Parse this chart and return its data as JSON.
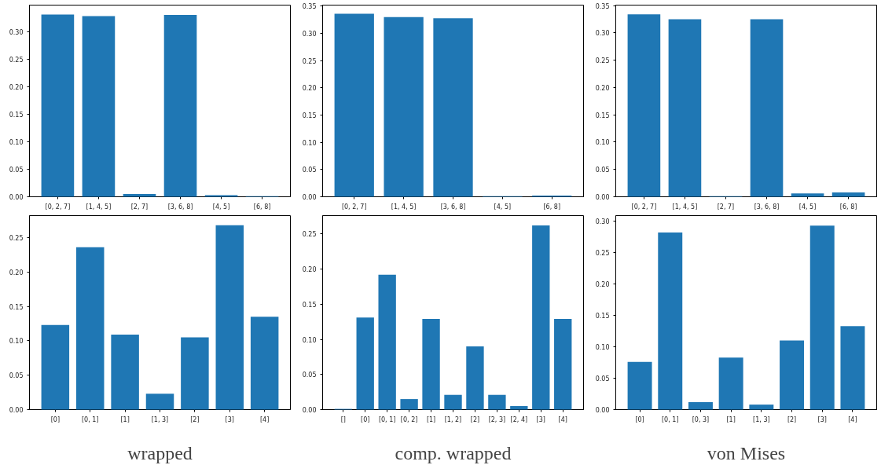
{
  "chart_data": [
    {
      "type": "bar",
      "categories": [
        "[0, 2, 7]",
        "[1, 4, 5]",
        "[2, 7]",
        "[3, 6, 8]",
        "[4, 5]",
        "[6, 8]"
      ],
      "values": [
        0.331,
        0.328,
        0.005,
        0.33,
        0.003,
        0.001
      ],
      "color": "#1f77b4",
      "ylim": [
        0,
        0.348
      ],
      "yticks": [
        {
          "value": 0,
          "label": "0.00"
        },
        {
          "value": 0.05,
          "label": "0.05"
        },
        {
          "value": 0.1,
          "label": "0.10"
        },
        {
          "value": 0.15,
          "label": "0.15"
        },
        {
          "value": 0.2,
          "label": "0.20"
        },
        {
          "value": 0.25,
          "label": "0.25"
        },
        {
          "value": 0.3,
          "label": "0.30"
        }
      ]
    },
    {
      "type": "bar",
      "categories": [
        "[0, 2, 7]",
        "[1, 4, 5]",
        "[3, 6, 8]",
        "[4, 5]",
        "[6, 8]"
      ],
      "values": [
        0.336,
        0.33,
        0.328,
        0.001,
        0.002
      ],
      "color": "#1f77b4",
      "ylim": [
        0,
        0.352
      ],
      "yticks": [
        {
          "value": 0,
          "label": "0.00"
        },
        {
          "value": 0.05,
          "label": "0.05"
        },
        {
          "value": 0.1,
          "label": "0.10"
        },
        {
          "value": 0.15,
          "label": "0.15"
        },
        {
          "value": 0.2,
          "label": "0.20"
        },
        {
          "value": 0.25,
          "label": "0.25"
        },
        {
          "value": 0.3,
          "label": "0.30"
        },
        {
          "value": 0.35,
          "label": "0.35"
        }
      ]
    },
    {
      "type": "bar",
      "categories": [
        "[0, 2, 7]",
        "[1, 4, 5]",
        "[2, 7]",
        "[3, 6, 8]",
        "[4, 5]",
        "[6, 8]"
      ],
      "values": [
        0.334,
        0.325,
        0.001,
        0.325,
        0.006,
        0.008
      ],
      "color": "#1f77b4",
      "ylim": [
        0,
        0.351
      ],
      "yticks": [
        {
          "value": 0,
          "label": "0.00"
        },
        {
          "value": 0.05,
          "label": "0.05"
        },
        {
          "value": 0.1,
          "label": "0.10"
        },
        {
          "value": 0.15,
          "label": "0.15"
        },
        {
          "value": 0.2,
          "label": "0.20"
        },
        {
          "value": 0.25,
          "label": "0.25"
        },
        {
          "value": 0.3,
          "label": "0.30"
        },
        {
          "value": 0.35,
          "label": "0.35"
        }
      ]
    },
    {
      "type": "bar",
      "xlabel": "wrapped",
      "categories": [
        "[0]",
        "[0, 1]",
        "[1]",
        "[1, 3]",
        "[2]",
        "[3]",
        "[4]"
      ],
      "values": [
        0.123,
        0.236,
        0.109,
        0.023,
        0.105,
        0.268,
        0.135
      ],
      "color": "#1f77b4",
      "ylim": [
        0,
        0.282
      ],
      "yticks": [
        {
          "value": 0,
          "label": "0.00"
        },
        {
          "value": 0.05,
          "label": "0.05"
        },
        {
          "value": 0.1,
          "label": "0.10"
        },
        {
          "value": 0.15,
          "label": "0.15"
        },
        {
          "value": 0.2,
          "label": "0.20"
        },
        {
          "value": 0.25,
          "label": "0.25"
        }
      ]
    },
    {
      "type": "bar",
      "xlabel": "comp. wrapped",
      "categories": [
        "[]",
        "[0]",
        "[0, 1]",
        "[0, 2]",
        "[1]",
        "[1, 2]",
        "[2]",
        "[2, 3]",
        "[2, 4]",
        "[3]",
        "[4]"
      ],
      "values": [
        0.001,
        0.131,
        0.192,
        0.015,
        0.129,
        0.021,
        0.09,
        0.021,
        0.005,
        0.262,
        0.129
      ],
      "color": "#1f77b4",
      "ylim": [
        0,
        0.276
      ],
      "yticks": [
        {
          "value": 0,
          "label": "0.00"
        },
        {
          "value": 0.05,
          "label": "0.05"
        },
        {
          "value": 0.1,
          "label": "0.10"
        },
        {
          "value": 0.15,
          "label": "0.15"
        },
        {
          "value": 0.2,
          "label": "0.20"
        },
        {
          "value": 0.25,
          "label": "0.25"
        }
      ]
    },
    {
      "type": "bar",
      "xlabel": "von Mises",
      "categories": [
        "[0]",
        "[0, 1]",
        "[0, 3]",
        "[1]",
        "[1, 3]",
        "[2]",
        "[3]",
        "[4]"
      ],
      "values": [
        0.076,
        0.282,
        0.012,
        0.083,
        0.008,
        0.11,
        0.293,
        0.133
      ],
      "color": "#1f77b4",
      "ylim": [
        0,
        0.309
      ],
      "yticks": [
        {
          "value": 0,
          "label": "0.00"
        },
        {
          "value": 0.05,
          "label": "0.05"
        },
        {
          "value": 0.1,
          "label": "0.10"
        },
        {
          "value": 0.15,
          "label": "0.15"
        },
        {
          "value": 0.2,
          "label": "0.20"
        },
        {
          "value": 0.25,
          "label": "0.25"
        },
        {
          "value": 0.3,
          "label": "0.30"
        }
      ]
    }
  ]
}
